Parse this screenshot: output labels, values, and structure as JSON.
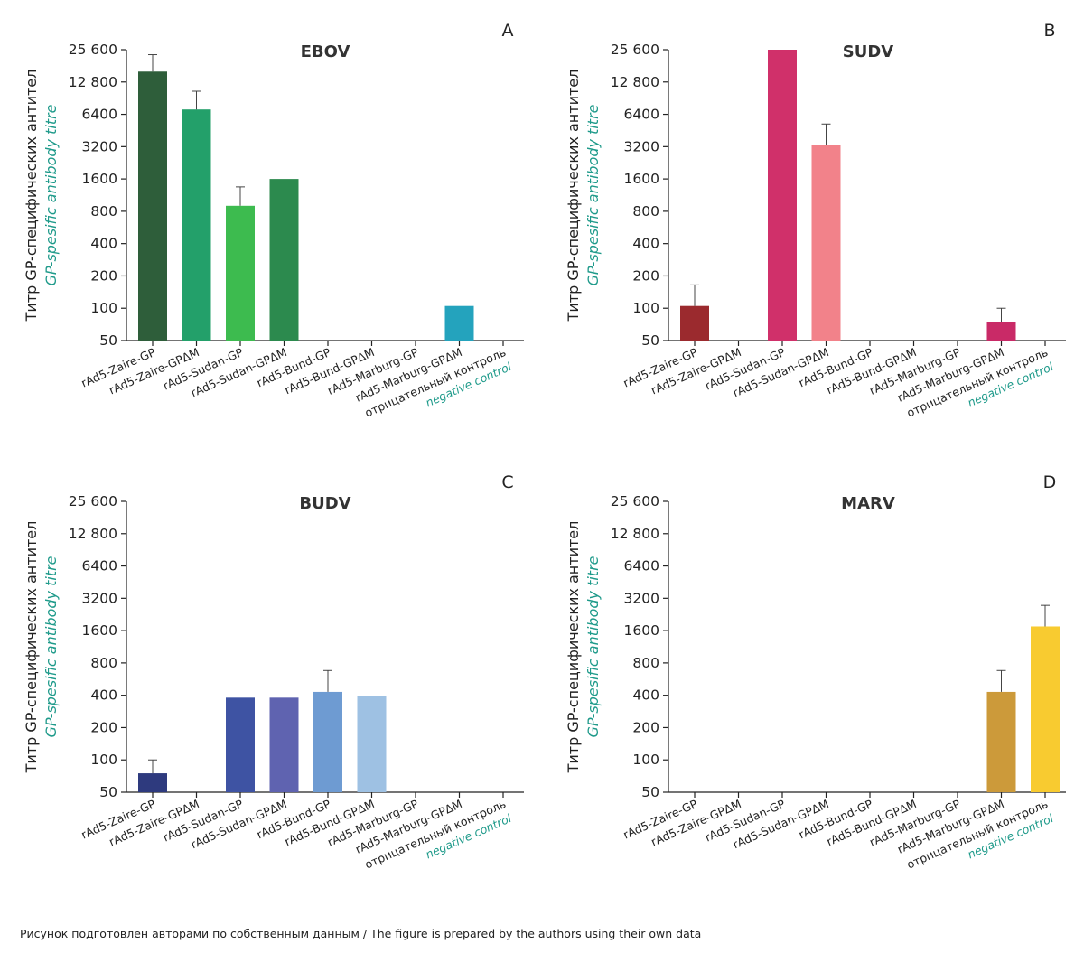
{
  "figure": {
    "caption": "Рисунок подготовлен авторами по собственным данным / The figure is prepared by the authors using their own data"
  },
  "chart_data": [
    {
      "type": "bar",
      "panel": "A",
      "title": "EBOV",
      "ylabel": "Титр GP-специфических антител",
      "ylabel_en": "GP-spesific antibody titre",
      "yscale": "log2",
      "ylim": [
        50,
        25600
      ],
      "yticks": [
        "50",
        "100",
        "200",
        "400",
        "800",
        "1600",
        "3200",
        "6400",
        "12 800",
        "25 600"
      ],
      "categories": [
        "rAd5-Zaire-GP",
        "rAd5-Zaire-GPΔM",
        "rAd5-Sudan-GP",
        "rAd5-Sudan-GPΔM",
        "rAd5-Bund-GP",
        "rAd5-Bund-GPΔM",
        "rAd5-Marburg-GP",
        "rAd5-Marburg-GPΔM",
        "отрицательный контроль"
      ],
      "last_category_en": "negative control",
      "values": [
        16000,
        7100,
        900,
        1600,
        null,
        null,
        null,
        105,
        null
      ],
      "error_upper": [
        23000,
        10500,
        1350,
        null,
        null,
        null,
        null,
        null,
        null
      ],
      "colors": [
        "#2e5e3a",
        "#23a06a",
        "#3dbb4f",
        "#2c8a4e",
        null,
        null,
        null,
        "#24a3bd",
        null
      ]
    },
    {
      "type": "bar",
      "panel": "B",
      "title": "SUDV",
      "ylabel": "Титр GP-специфических антител",
      "ylabel_en": "GP-spesific antibody titre",
      "yscale": "log2",
      "ylim": [
        50,
        25600
      ],
      "yticks": [
        "50",
        "100",
        "200",
        "400",
        "800",
        "1600",
        "3200",
        "6400",
        "12 800",
        "25 600"
      ],
      "categories": [
        "rAd5-Zaire-GP",
        "rAd5-Zaire-GPΔM",
        "rAd5-Sudan-GP",
        "rAd5-Sudan-GPΔM",
        "rAd5-Bund-GP",
        "rAd5-Bund-GPΔM",
        "rAd5-Marburg-GP",
        "rAd5-Marburg-GPΔM",
        "отрицательный контроль"
      ],
      "last_category_en": "negative control",
      "values": [
        105,
        null,
        25600,
        3300,
        null,
        null,
        null,
        75,
        null
      ],
      "error_upper": [
        165,
        null,
        null,
        5200,
        null,
        null,
        null,
        100,
        null
      ],
      "colors": [
        "#9b2a2e",
        null,
        "#d0306a",
        "#f2828a",
        null,
        null,
        null,
        "#c92a67",
        null
      ]
    },
    {
      "type": "bar",
      "panel": "C",
      "title": "BUDV",
      "ylabel": "Титр GP-специфических антител",
      "ylabel_en": "GP-spesific antibody titre",
      "yscale": "log2",
      "ylim": [
        50,
        25600
      ],
      "yticks": [
        "50",
        "100",
        "200",
        "400",
        "800",
        "1600",
        "3200",
        "6400",
        "12 800",
        "25 600"
      ],
      "categories": [
        "rAd5-Zaire-GP",
        "rAd5-Zaire-GPΔM",
        "rAd5-Sudan-GP",
        "rAd5-Sudan-GPΔM",
        "rAd5-Bund-GP",
        "rAd5-Bund-GPΔM",
        "rAd5-Marburg-GP",
        "rAd5-Marburg-GPΔM",
        "отрицательный контроль"
      ],
      "last_category_en": "negative control",
      "values": [
        75,
        null,
        380,
        380,
        430,
        390,
        null,
        null,
        null
      ],
      "error_upper": [
        100,
        null,
        null,
        null,
        680,
        null,
        null,
        null,
        null
      ],
      "colors": [
        "#2e3a7e",
        null,
        "#3e53a3",
        "#5f63b0",
        "#6e9bd2",
        "#9ec1e3",
        null,
        null,
        null
      ]
    },
    {
      "type": "bar",
      "panel": "D",
      "title": "MARV",
      "ylabel": "Титр GP-специфических антител",
      "ylabel_en": "GP-spesific antibody titre",
      "yscale": "log2",
      "ylim": [
        50,
        25600
      ],
      "yticks": [
        "50",
        "100",
        "200",
        "400",
        "800",
        "1600",
        "3200",
        "6400",
        "12 800",
        "25 600"
      ],
      "categories": [
        "rAd5-Zaire-GP",
        "rAd5-Zaire-GPΔM",
        "rAd5-Sudan-GP",
        "rAd5-Sudan-GPΔM",
        "rAd5-Bund-GP",
        "rAd5-Bund-GPΔM",
        "rAd5-Marburg-GP",
        "rAd5-Marburg-GPΔM",
        "отрицательный контроль"
      ],
      "last_category_en": "negative control",
      "values": [
        null,
        null,
        null,
        null,
        null,
        null,
        null,
        430,
        1750
      ],
      "error_upper": [
        null,
        null,
        null,
        null,
        null,
        null,
        null,
        680,
        2750
      ],
      "colors": [
        null,
        null,
        null,
        null,
        null,
        null,
        null,
        "#cc9a3a",
        "#f8cb30"
      ]
    }
  ]
}
